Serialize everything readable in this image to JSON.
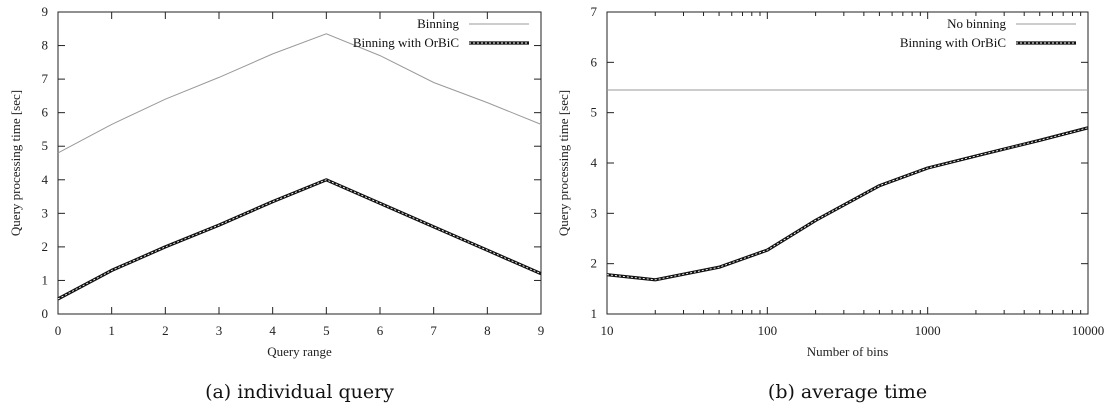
{
  "chart_data": [
    {
      "type": "line",
      "caption": "(a) individual query",
      "xlabel": "Query range",
      "ylabel": "Query processing time [sec]",
      "xlim": [
        0,
        9
      ],
      "ylim": [
        0,
        9
      ],
      "xticks": [
        "0",
        "1",
        "2",
        "3",
        "4",
        "5",
        "6",
        "7",
        "8",
        "9"
      ],
      "yticks": [
        "0",
        "1",
        "2",
        "3",
        "4",
        "5",
        "6",
        "7",
        "8",
        "9"
      ],
      "x_scale": "linear",
      "grid": false,
      "legend_position": "top-right",
      "series": [
        {
          "name": "Binning",
          "style": "solid-thin-gray",
          "color": "#9a9a9a",
          "x": [
            0,
            1,
            2,
            3,
            4,
            5,
            6,
            7,
            8,
            9
          ],
          "y": [
            4.8,
            5.65,
            6.4,
            7.05,
            7.75,
            8.35,
            7.7,
            6.9,
            6.3,
            5.65
          ]
        },
        {
          "name": "Binning with OrBiC",
          "style": "dashed-thick-black",
          "color": "#111111",
          "x": [
            0,
            1,
            2,
            3,
            4,
            5,
            6,
            7,
            8,
            9
          ],
          "y": [
            0.45,
            1.3,
            2.0,
            2.65,
            3.35,
            4.0,
            3.3,
            2.6,
            1.9,
            1.2
          ]
        }
      ]
    },
    {
      "type": "line",
      "caption": "(b) average time",
      "xlabel": "Number of bins",
      "ylabel": "Query processing time [sec]",
      "xlim": [
        10,
        10000
      ],
      "ylim": [
        1,
        7
      ],
      "xticks": [
        "10",
        "100",
        "1000",
        "10000"
      ],
      "xtick_values": [
        10,
        100,
        1000,
        10000
      ],
      "yticks": [
        "1",
        "2",
        "3",
        "4",
        "5",
        "6",
        "7"
      ],
      "x_scale": "log",
      "grid": false,
      "legend_position": "top-right",
      "series": [
        {
          "name": "No binning",
          "style": "solid-thin-gray",
          "color": "#9a9a9a",
          "x": [
            10,
            10000
          ],
          "y": [
            5.45,
            5.45
          ]
        },
        {
          "name": "Binning with OrBiC",
          "style": "dashed-thick-black",
          "color": "#111111",
          "x": [
            10,
            20,
            50,
            100,
            200,
            500,
            1000,
            2000,
            5000,
            10000
          ],
          "y": [
            1.78,
            1.68,
            1.93,
            2.27,
            2.86,
            3.55,
            3.9,
            4.14,
            4.45,
            4.7
          ]
        }
      ]
    }
  ]
}
